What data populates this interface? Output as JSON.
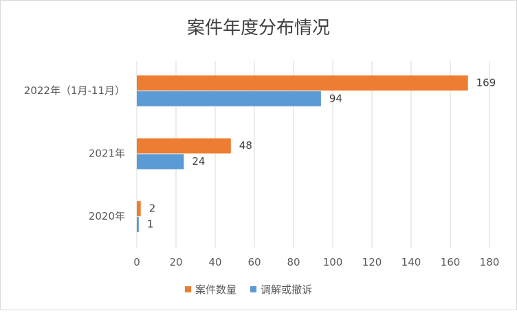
{
  "chart_data": {
    "type": "bar",
    "orientation": "horizontal",
    "title": "案件年度分布情况",
    "categories": [
      "2022年（1月-11月）",
      "2021年",
      "2020年"
    ],
    "series": [
      {
        "name": "案件数量",
        "values": [
          169,
          48,
          2
        ],
        "color": "#ed7d31"
      },
      {
        "name": "调解或撤诉",
        "values": [
          94,
          24,
          1
        ],
        "color": "#5b9bd5"
      }
    ],
    "xlim": [
      0,
      180
    ],
    "xticks": [
      0,
      20,
      40,
      60,
      80,
      100,
      120,
      140,
      160,
      180
    ],
    "grid": true,
    "legend_position": "bottom"
  }
}
